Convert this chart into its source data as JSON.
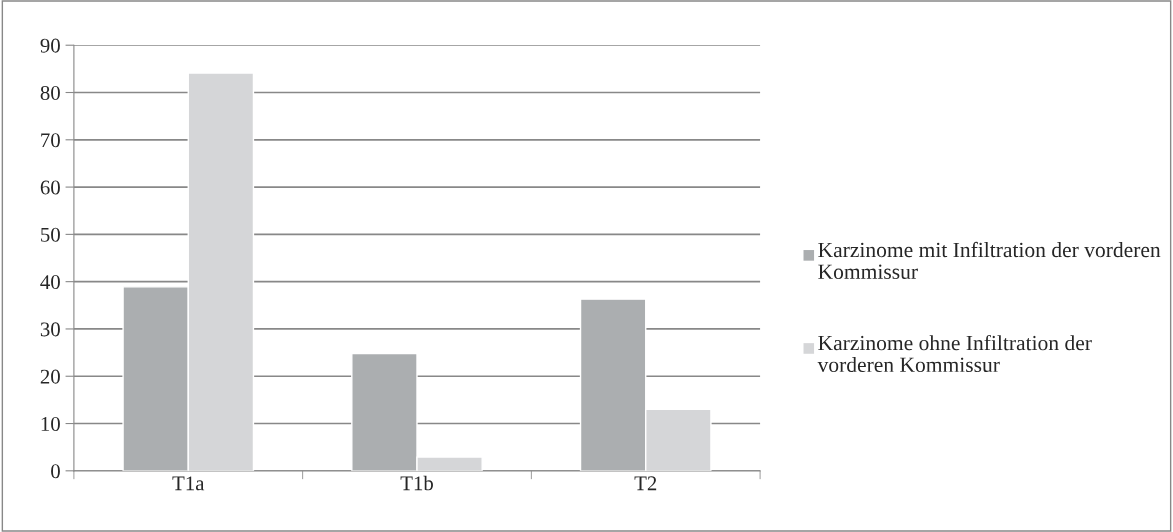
{
  "chart_data": {
    "type": "bar",
    "categories": [
      "T1a",
      "T1b",
      "T2"
    ],
    "series": [
      {
        "name": "Karzinome mit Infiltration der vorderen Kommissur",
        "color": "#abaeb0",
        "values": [
          38.9,
          24.8,
          36.3
        ]
      },
      {
        "name": "Karzinome ohne Infiltration der vorderen Kommissur",
        "color": "#d5d6d8",
        "values": [
          84.1,
          2.9,
          13.0
        ]
      }
    ],
    "ylim": [
      0,
      90
    ],
    "yticks": [
      0,
      10,
      20,
      30,
      40,
      50,
      60,
      70,
      80,
      90
    ],
    "grid": "y",
    "legend": "right"
  }
}
